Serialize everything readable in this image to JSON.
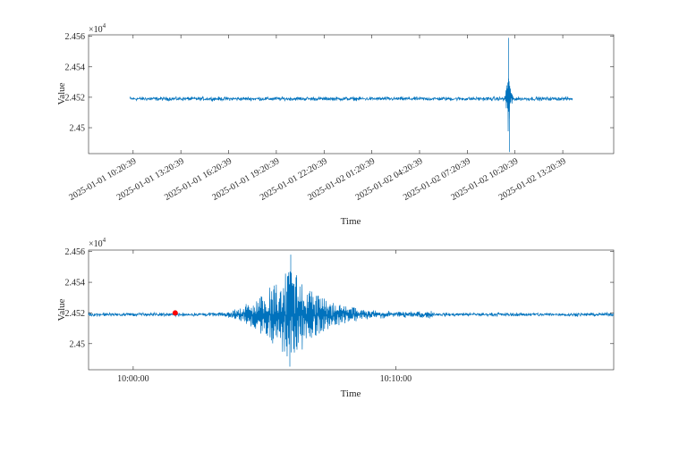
{
  "chart_data": [
    {
      "type": "line",
      "id": "overview",
      "title": "",
      "xlabel": "Time",
      "ylabel": "Value",
      "y_multiplier_label": "×10",
      "y_multiplier_exponent": "4",
      "ylim": [
        2.4483,
        2.4561
      ],
      "yticks": [
        2.45,
        2.452,
        2.454,
        2.456
      ],
      "ytick_labels": [
        "2.45",
        "2.452",
        "2.454",
        "2.456"
      ],
      "x_domain_hours": [
        -2.8,
        30.2
      ],
      "xticks_hours": [
        0,
        3,
        6,
        9,
        12,
        15,
        18,
        21,
        24,
        27
      ],
      "xtick_labels": [
        "2025-01-01 10:20:39",
        "2025-01-01 13:20:39",
        "2025-01-01 16:20:39",
        "2025-01-01 19:20:39",
        "2025-01-01 22:20:39",
        "2025-01-02 01:20:39",
        "2025-01-02 04:20:39",
        "2025-01-02 07:20:39",
        "2025-01-02 10:20:39",
        "2025-01-02 13:20:39"
      ],
      "series": [
        {
          "color": "#0072BD",
          "baseline": 2.4519,
          "time_range_hours": [
            -0.2,
            27.6
          ],
          "noise_amplitude": 0.00018,
          "event": {
            "time_hours": 23.6,
            "peak": 2.4559,
            "trough": 2.4484
          }
        }
      ],
      "grid": false,
      "legend": "none"
    },
    {
      "type": "line",
      "id": "zoom",
      "title": "",
      "xlabel": "Time",
      "ylabel": "Value",
      "y_multiplier_label": "×10",
      "y_multiplier_exponent": "4",
      "ylim": [
        2.4483,
        2.4561
      ],
      "yticks": [
        2.45,
        2.452,
        2.454,
        2.456
      ],
      "ytick_labels": [
        "2.45",
        "2.452",
        "2.454",
        "2.456"
      ],
      "x_domain_minutes": [
        -1.7,
        18.3
      ],
      "xticks_minutes": [
        0,
        10
      ],
      "xtick_labels": [
        "10:00:00",
        "10:10:00"
      ],
      "series": [
        {
          "color": "#0072BD",
          "baseline": 2.4519,
          "noise_amplitude": 0.00016,
          "event": {
            "start_minutes": 2.9,
            "peak_minutes": 6.0,
            "end_minutes": 9.5,
            "peak": 2.4558,
            "trough": 2.4485
          }
        }
      ],
      "marker": {
        "time_minutes": 1.6,
        "value": 2.452,
        "color": "#FF0000"
      },
      "grid": false,
      "legend": "none"
    }
  ]
}
